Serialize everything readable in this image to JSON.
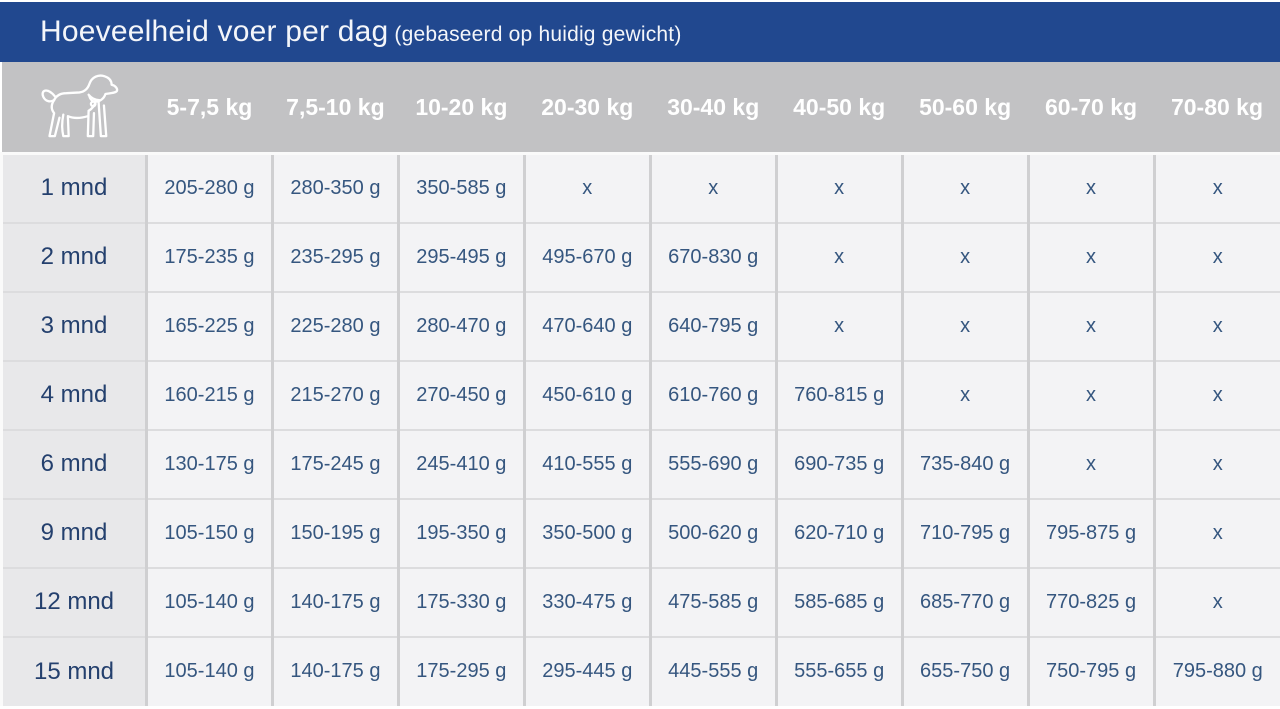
{
  "title": {
    "main": "Hoeveelheid voer per dag",
    "sub": "(gebaseerd op huidig gewicht)"
  },
  "colors": {
    "title_bar": "#21488f",
    "header_band": "#c2c2c4",
    "row_label_bg": "#e8e8ea",
    "cell_bg": "#f3f3f5",
    "cell_text": "#35567f",
    "label_text": "#24406e",
    "header_text": "#ffffff"
  },
  "icons": {
    "corner": "dog-icon"
  },
  "chart_data": {
    "type": "table",
    "title": "Hoeveelheid voer per dag (gebaseerd op huidig gewicht)",
    "columns": [
      "5-7,5 kg",
      "7,5-10 kg",
      "10-20 kg",
      "20-30 kg",
      "30-40 kg",
      "40-50 kg",
      "50-60 kg",
      "60-70 kg",
      "70-80 kg"
    ],
    "rows": [
      {
        "label": "1 mnd",
        "values": [
          "205-280 g",
          "280-350 g",
          "350-585 g",
          "x",
          "x",
          "x",
          "x",
          "x",
          "x"
        ]
      },
      {
        "label": "2 mnd",
        "values": [
          "175-235 g",
          "235-295 g",
          "295-495 g",
          "495-670 g",
          "670-830 g",
          "x",
          "x",
          "x",
          "x"
        ]
      },
      {
        "label": "3 mnd",
        "values": [
          "165-225 g",
          "225-280 g",
          "280-470 g",
          "470-640 g",
          "640-795 g",
          "x",
          "x",
          "x",
          "x"
        ]
      },
      {
        "label": "4 mnd",
        "values": [
          "160-215 g",
          "215-270 g",
          "270-450 g",
          "450-610 g",
          "610-760 g",
          "760-815 g",
          "x",
          "x",
          "x"
        ]
      },
      {
        "label": "6 mnd",
        "values": [
          "130-175 g",
          "175-245 g",
          "245-410 g",
          "410-555 g",
          "555-690 g",
          "690-735 g",
          "735-840 g",
          "x",
          "x"
        ]
      },
      {
        "label": "9 mnd",
        "values": [
          "105-150 g",
          "150-195 g",
          "195-350 g",
          "350-500 g",
          "500-620 g",
          "620-710 g",
          "710-795 g",
          "795-875 g",
          "x"
        ]
      },
      {
        "label": "12 mnd",
        "values": [
          "105-140 g",
          "140-175 g",
          "175-330 g",
          "330-475 g",
          "475-585 g",
          "585-685 g",
          "685-770 g",
          "770-825 g",
          "x"
        ]
      },
      {
        "label": "15 mnd",
        "values": [
          "105-140 g",
          "140-175 g",
          "175-295 g",
          "295-445 g",
          "445-555 g",
          "555-655 g",
          "655-750 g",
          "750-795 g",
          "795-880 g"
        ]
      }
    ]
  }
}
